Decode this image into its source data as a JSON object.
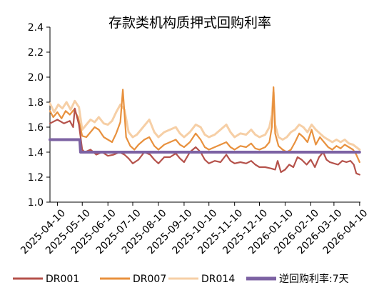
{
  "chart_data": {
    "type": "line",
    "title": "存款类机构质押式回购利率",
    "xlabel": "",
    "ylabel": "",
    "ylim": [
      1.0,
      2.4
    ],
    "yticks": [
      "1.0",
      "1.2",
      "1.4",
      "1.6",
      "1.8",
      "2.0",
      "2.2",
      "2.4"
    ],
    "xrange": [
      "2025-04-01",
      "2026-04-11"
    ],
    "xticks": [
      "2025-04-10",
      "2025-05-10",
      "2025-06-10",
      "2025-07-10",
      "2025-08-10",
      "2025-09-10",
      "2025-10-10",
      "2025-11-10",
      "2025-12-10",
      "2026-01-10",
      "2026-02-10",
      "2026-03-10",
      "2026-04-10"
    ],
    "grid": false,
    "legend_position": "bottom",
    "series": [
      {
        "name": "DR001",
        "color": "#b5524b",
        "points": [
          [
            "2025-04-01",
            1.63
          ],
          [
            "2025-04-10",
            1.66
          ],
          [
            "2025-04-18",
            1.63
          ],
          [
            "2025-04-25",
            1.65
          ],
          [
            "2025-04-29",
            1.6
          ],
          [
            "2025-05-01",
            1.75
          ],
          [
            "2025-05-06",
            1.62
          ],
          [
            "2025-05-10",
            1.42
          ],
          [
            "2025-05-13",
            1.4
          ],
          [
            "2025-05-20",
            1.42
          ],
          [
            "2025-05-27",
            1.38
          ],
          [
            "2025-06-03",
            1.4
          ],
          [
            "2025-06-10",
            1.37
          ],
          [
            "2025-06-17",
            1.38
          ],
          [
            "2025-06-24",
            1.4
          ],
          [
            "2025-06-30",
            1.38
          ],
          [
            "2025-07-05",
            1.35
          ],
          [
            "2025-07-10",
            1.31
          ],
          [
            "2025-07-17",
            1.34
          ],
          [
            "2025-07-24",
            1.4
          ],
          [
            "2025-07-31",
            1.38
          ],
          [
            "2025-08-05",
            1.34
          ],
          [
            "2025-08-10",
            1.31
          ],
          [
            "2025-08-17",
            1.36
          ],
          [
            "2025-08-24",
            1.36
          ],
          [
            "2025-08-31",
            1.39
          ],
          [
            "2025-09-05",
            1.35
          ],
          [
            "2025-09-10",
            1.32
          ],
          [
            "2025-09-17",
            1.4
          ],
          [
            "2025-09-24",
            1.44
          ],
          [
            "2025-09-30",
            1.4
          ],
          [
            "2025-10-05",
            1.34
          ],
          [
            "2025-10-10",
            1.31
          ],
          [
            "2025-10-17",
            1.33
          ],
          [
            "2025-10-24",
            1.32
          ],
          [
            "2025-10-31",
            1.38
          ],
          [
            "2025-11-05",
            1.33
          ],
          [
            "2025-11-10",
            1.31
          ],
          [
            "2025-11-17",
            1.32
          ],
          [
            "2025-11-24",
            1.31
          ],
          [
            "2025-11-30",
            1.33
          ],
          [
            "2025-12-05",
            1.3
          ],
          [
            "2025-12-10",
            1.28
          ],
          [
            "2025-12-17",
            1.28
          ],
          [
            "2025-12-24",
            1.27
          ],
          [
            "2025-12-29",
            1.26
          ],
          [
            "2026-01-01",
            1.33
          ],
          [
            "2026-01-05",
            1.24
          ],
          [
            "2026-01-10",
            1.26
          ],
          [
            "2026-01-15",
            1.3
          ],
          [
            "2026-01-20",
            1.28
          ],
          [
            "2026-01-25",
            1.36
          ],
          [
            "2026-01-30",
            1.34
          ],
          [
            "2026-02-05",
            1.3
          ],
          [
            "2026-02-10",
            1.34
          ],
          [
            "2026-02-15",
            1.28
          ],
          [
            "2026-02-20",
            1.36
          ],
          [
            "2026-02-25",
            1.4
          ],
          [
            "2026-03-01",
            1.34
          ],
          [
            "2026-03-05",
            1.32
          ],
          [
            "2026-03-10",
            1.31
          ],
          [
            "2026-03-15",
            1.3
          ],
          [
            "2026-03-20",
            1.33
          ],
          [
            "2026-03-25",
            1.32
          ],
          [
            "2026-03-30",
            1.33
          ],
          [
            "2026-04-03",
            1.3
          ],
          [
            "2026-04-06",
            1.23
          ],
          [
            "2026-04-10",
            1.22
          ]
        ]
      },
      {
        "name": "DR007",
        "color": "#e8913e",
        "points": [
          [
            "2025-04-01",
            1.73
          ],
          [
            "2025-04-05",
            1.68
          ],
          [
            "2025-04-10",
            1.72
          ],
          [
            "2025-04-15",
            1.67
          ],
          [
            "2025-04-20",
            1.73
          ],
          [
            "2025-04-25",
            1.7
          ],
          [
            "2025-04-30",
            1.74
          ],
          [
            "2025-05-05",
            1.68
          ],
          [
            "2025-05-10",
            1.53
          ],
          [
            "2025-05-15",
            1.52
          ],
          [
            "2025-05-20",
            1.56
          ],
          [
            "2025-05-25",
            1.6
          ],
          [
            "2025-05-30",
            1.58
          ],
          [
            "2025-06-05",
            1.52
          ],
          [
            "2025-06-10",
            1.5
          ],
          [
            "2025-06-15",
            1.48
          ],
          [
            "2025-06-20",
            1.55
          ],
          [
            "2025-06-25",
            1.64
          ],
          [
            "2025-06-28",
            1.9
          ],
          [
            "2025-07-02",
            1.52
          ],
          [
            "2025-07-07",
            1.45
          ],
          [
            "2025-07-12",
            1.42
          ],
          [
            "2025-07-17",
            1.46
          ],
          [
            "2025-07-24",
            1.5
          ],
          [
            "2025-07-30",
            1.52
          ],
          [
            "2025-08-05",
            1.45
          ],
          [
            "2025-08-10",
            1.42
          ],
          [
            "2025-08-17",
            1.46
          ],
          [
            "2025-08-24",
            1.48
          ],
          [
            "2025-08-31",
            1.5
          ],
          [
            "2025-09-05",
            1.46
          ],
          [
            "2025-09-10",
            1.44
          ],
          [
            "2025-09-17",
            1.48
          ],
          [
            "2025-09-24",
            1.55
          ],
          [
            "2025-09-30",
            1.5
          ],
          [
            "2025-10-05",
            1.44
          ],
          [
            "2025-10-10",
            1.42
          ],
          [
            "2025-10-17",
            1.44
          ],
          [
            "2025-10-24",
            1.46
          ],
          [
            "2025-10-31",
            1.48
          ],
          [
            "2025-11-05",
            1.44
          ],
          [
            "2025-11-10",
            1.42
          ],
          [
            "2025-11-17",
            1.45
          ],
          [
            "2025-11-24",
            1.44
          ],
          [
            "2025-11-30",
            1.47
          ],
          [
            "2025-12-05",
            1.43
          ],
          [
            "2025-12-10",
            1.42
          ],
          [
            "2025-12-17",
            1.44
          ],
          [
            "2025-12-22",
            1.48
          ],
          [
            "2025-12-25",
            1.6
          ],
          [
            "2025-12-27",
            1.92
          ],
          [
            "2025-12-29",
            1.55
          ],
          [
            "2026-01-02",
            1.45
          ],
          [
            "2026-01-07",
            1.42
          ],
          [
            "2026-01-12",
            1.4
          ],
          [
            "2026-01-17",
            1.42
          ],
          [
            "2026-01-22",
            1.48
          ],
          [
            "2026-01-27",
            1.55
          ],
          [
            "2026-02-01",
            1.52
          ],
          [
            "2026-02-06",
            1.48
          ],
          [
            "2026-02-11",
            1.58
          ],
          [
            "2026-02-16",
            1.46
          ],
          [
            "2026-02-21",
            1.52
          ],
          [
            "2026-02-26",
            1.48
          ],
          [
            "2026-03-03",
            1.44
          ],
          [
            "2026-03-08",
            1.42
          ],
          [
            "2026-03-13",
            1.45
          ],
          [
            "2026-03-18",
            1.43
          ],
          [
            "2026-03-23",
            1.46
          ],
          [
            "2026-03-28",
            1.44
          ],
          [
            "2026-04-02",
            1.42
          ],
          [
            "2026-04-06",
            1.38
          ],
          [
            "2026-04-10",
            1.32
          ]
        ]
      },
      {
        "name": "DR014",
        "color": "#f6cfa6",
        "points": [
          [
            "2025-04-01",
            1.79
          ],
          [
            "2025-04-06",
            1.72
          ],
          [
            "2025-04-11",
            1.78
          ],
          [
            "2025-04-16",
            1.75
          ],
          [
            "2025-04-21",
            1.8
          ],
          [
            "2025-04-26",
            1.74
          ],
          [
            "2025-05-01",
            1.81
          ],
          [
            "2025-05-06",
            1.76
          ],
          [
            "2025-05-10",
            1.58
          ],
          [
            "2025-05-15",
            1.62
          ],
          [
            "2025-05-20",
            1.66
          ],
          [
            "2025-05-25",
            1.64
          ],
          [
            "2025-05-30",
            1.68
          ],
          [
            "2025-06-05",
            1.63
          ],
          [
            "2025-06-10",
            1.62
          ],
          [
            "2025-06-15",
            1.65
          ],
          [
            "2025-06-20",
            1.72
          ],
          [
            "2025-06-25",
            1.78
          ],
          [
            "2025-06-30",
            1.74
          ],
          [
            "2025-07-05",
            1.56
          ],
          [
            "2025-07-10",
            1.52
          ],
          [
            "2025-07-15",
            1.54
          ],
          [
            "2025-07-20",
            1.58
          ],
          [
            "2025-07-25",
            1.62
          ],
          [
            "2025-07-30",
            1.66
          ],
          [
            "2025-08-05",
            1.56
          ],
          [
            "2025-08-10",
            1.52
          ],
          [
            "2025-08-17",
            1.56
          ],
          [
            "2025-08-24",
            1.58
          ],
          [
            "2025-08-31",
            1.6
          ],
          [
            "2025-09-05",
            1.55
          ],
          [
            "2025-09-10",
            1.52
          ],
          [
            "2025-09-17",
            1.56
          ],
          [
            "2025-09-24",
            1.62
          ],
          [
            "2025-09-30",
            1.6
          ],
          [
            "2025-10-05",
            1.54
          ],
          [
            "2025-10-10",
            1.52
          ],
          [
            "2025-10-17",
            1.54
          ],
          [
            "2025-10-24",
            1.58
          ],
          [
            "2025-10-31",
            1.62
          ],
          [
            "2025-11-05",
            1.56
          ],
          [
            "2025-11-10",
            1.52
          ],
          [
            "2025-11-17",
            1.55
          ],
          [
            "2025-11-24",
            1.54
          ],
          [
            "2025-11-30",
            1.58
          ],
          [
            "2025-12-05",
            1.54
          ],
          [
            "2025-12-10",
            1.52
          ],
          [
            "2025-12-17",
            1.54
          ],
          [
            "2025-12-22",
            1.6
          ],
          [
            "2025-12-25",
            1.7
          ],
          [
            "2025-12-27",
            1.88
          ],
          [
            "2025-12-29",
            1.62
          ],
          [
            "2026-01-02",
            1.52
          ],
          [
            "2026-01-07",
            1.5
          ],
          [
            "2026-01-12",
            1.52
          ],
          [
            "2026-01-17",
            1.56
          ],
          [
            "2026-01-22",
            1.58
          ],
          [
            "2026-01-27",
            1.62
          ],
          [
            "2026-02-01",
            1.6
          ],
          [
            "2026-02-06",
            1.56
          ],
          [
            "2026-02-11",
            1.62
          ],
          [
            "2026-02-16",
            1.58
          ],
          [
            "2026-02-21",
            1.55
          ],
          [
            "2026-02-26",
            1.52
          ],
          [
            "2026-03-03",
            1.5
          ],
          [
            "2026-03-08",
            1.48
          ],
          [
            "2026-03-13",
            1.5
          ],
          [
            "2026-03-18",
            1.48
          ],
          [
            "2026-03-23",
            1.5
          ],
          [
            "2026-03-28",
            1.47
          ],
          [
            "2026-04-02",
            1.46
          ],
          [
            "2026-04-06",
            1.44
          ],
          [
            "2026-04-10",
            1.42
          ]
        ]
      },
      {
        "name": "逆回购利率:7天",
        "color": "#7c62a3",
        "step": true,
        "points": [
          [
            "2025-04-01",
            1.5
          ],
          [
            "2025-05-07",
            1.5
          ],
          [
            "2025-05-08",
            1.4
          ],
          [
            "2026-04-10",
            1.4
          ]
        ]
      }
    ]
  }
}
